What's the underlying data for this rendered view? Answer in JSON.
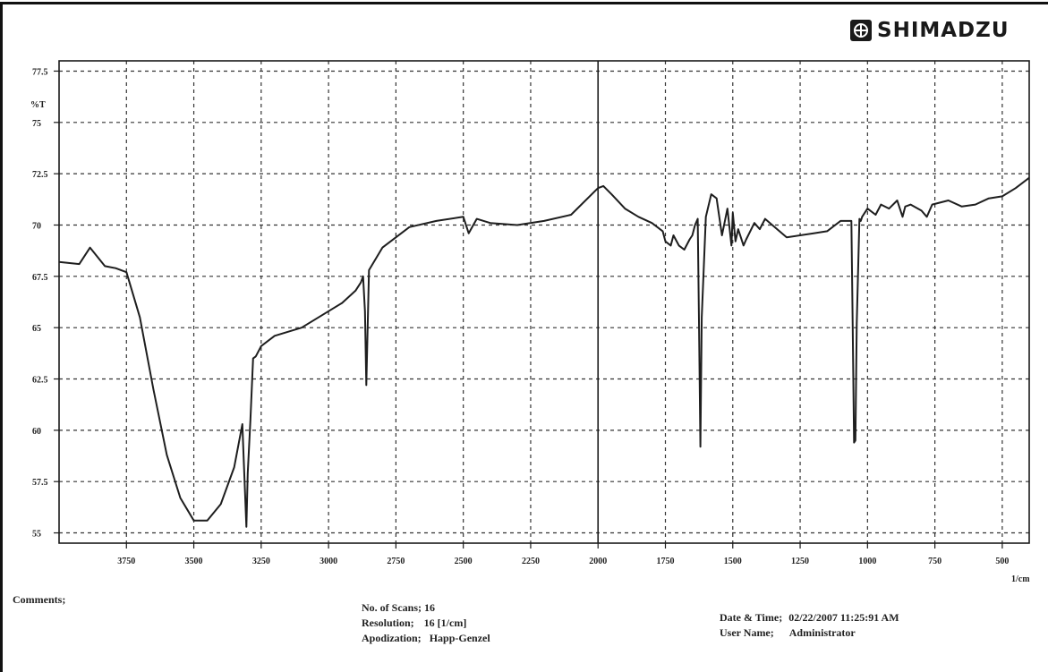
{
  "brand": {
    "name": "SHIMADZU",
    "logo_icon": "shimadzu-emblem-icon"
  },
  "chart_data": {
    "type": "line",
    "title": "",
    "xlabel": "",
    "x_unit": "1/cm",
    "ylabel": "%T",
    "xlim": [
      4000,
      400
    ],
    "ylim": [
      54.5,
      78
    ],
    "x_ticks": [
      3750,
      3500,
      3250,
      3000,
      2750,
      2500,
      2250,
      2000,
      1750,
      1500,
      1250,
      1000,
      750,
      500
    ],
    "x_tick_labels": [
      "3750",
      "3500",
      "3250",
      "3000",
      "2750",
      "2500",
      "2250",
      "2000",
      "1750",
      "1500",
      "1250",
      "1000",
      "750",
      "500"
    ],
    "y_ticks": [
      55,
      57.5,
      60,
      62.5,
      65,
      67.5,
      70,
      72.5,
      75,
      77.5
    ],
    "y_tick_labels": [
      "55",
      "57.5",
      "60",
      "62.5",
      "65",
      "67.5",
      "70",
      "72.5",
      "75",
      "77.5"
    ],
    "grid": true,
    "series": [
      {
        "color": "#1e1e1e",
        "x": [
          4000,
          3925,
          3885,
          3830,
          3790,
          3750,
          3700,
          3650,
          3600,
          3550,
          3500,
          3450,
          3400,
          3350,
          3320,
          3315,
          3305,
          3300,
          3290,
          3280,
          3270,
          3250,
          3200,
          3100,
          3000,
          2950,
          2900,
          2880,
          2872,
          2865,
          2860,
          2850,
          2800,
          2700,
          2600,
          2500,
          2480,
          2450,
          2400,
          2300,
          2200,
          2100,
          2000,
          1980,
          1950,
          1900,
          1850,
          1800,
          1760,
          1750,
          1730,
          1720,
          1700,
          1680,
          1660,
          1650,
          1640,
          1630,
          1625,
          1620,
          1615,
          1600,
          1580,
          1560,
          1540,
          1520,
          1505,
          1500,
          1490,
          1480,
          1460,
          1450,
          1420,
          1400,
          1380,
          1300,
          1200,
          1150,
          1100,
          1060,
          1055,
          1050,
          1045,
          1040,
          1030,
          1025,
          1020,
          1010,
          1000,
          970,
          950,
          920,
          890,
          870,
          860,
          840,
          800,
          780,
          760,
          700,
          650,
          600,
          550,
          500,
          450,
          400
        ],
        "y": [
          68.2,
          68.1,
          68.9,
          68.0,
          67.9,
          67.7,
          65.5,
          62.0,
          58.8,
          56.7,
          55.6,
          55.6,
          56.4,
          58.2,
          60.3,
          58.6,
          55.3,
          57.9,
          60.5,
          63.5,
          63.6,
          64.1,
          64.6,
          65.0,
          65.8,
          66.2,
          66.8,
          67.2,
          67.5,
          65.8,
          62.2,
          67.8,
          68.9,
          69.9,
          70.2,
          70.4,
          69.6,
          70.3,
          70.1,
          70.0,
          70.2,
          70.5,
          71.8,
          71.9,
          71.5,
          70.8,
          70.4,
          70.1,
          69.7,
          69.2,
          69.0,
          69.5,
          69.0,
          68.8,
          69.3,
          69.5,
          70.0,
          70.3,
          65.0,
          59.2,
          65.5,
          70.4,
          71.5,
          71.3,
          69.5,
          70.8,
          69.0,
          70.6,
          69.2,
          69.8,
          69.0,
          69.3,
          70.1,
          69.8,
          70.3,
          69.4,
          69.6,
          69.7,
          70.2,
          70.2,
          65.0,
          59.4,
          59.5,
          65.2,
          70.3,
          70.2,
          70.4,
          70.6,
          70.8,
          70.5,
          71.0,
          70.8,
          71.2,
          70.4,
          70.9,
          71.0,
          70.7,
          70.4,
          71.0,
          71.2,
          70.9,
          71.0,
          71.3,
          71.4,
          71.8,
          72.3
        ]
      }
    ]
  },
  "footer": {
    "comments_label": "Comments;",
    "scans_label": "No. of Scans;",
    "scans_value": "16",
    "resolution_label": "Resolution;",
    "resolution_value": "16 [1/cm]",
    "apodization_label": "Apodization;",
    "apodization_value": "Happ-Genzel",
    "datetime_label": "Date & Time;",
    "datetime_value": "02/22/2007 11:25:91 AM",
    "user_label": "User Name;",
    "user_value": "Administrator"
  }
}
